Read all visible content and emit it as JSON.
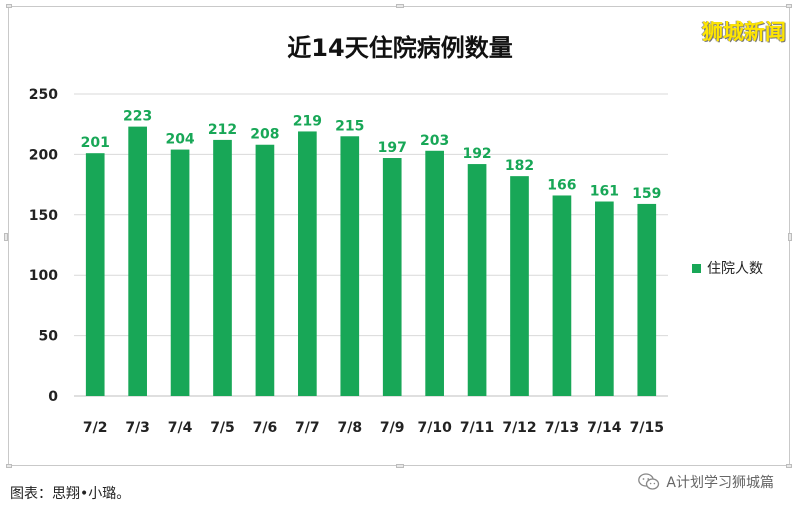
{
  "watermark": "狮城新闻",
  "caption": "图表：思翔•小璐。",
  "account": {
    "icon": "wechat-icon",
    "name": "A计划学习狮城篇"
  },
  "colors": {
    "bar": "#18a757",
    "bar_label": "#18a757",
    "gridline": "#d9d9d9"
  },
  "chart_data": {
    "type": "bar",
    "title": "近14天住院病例数量",
    "xlabel": "",
    "ylabel": "",
    "ylim": [
      0,
      250
    ],
    "yticks": [
      0,
      50,
      100,
      150,
      200,
      250
    ],
    "grid": true,
    "legend_position": "right",
    "categories": [
      "7/2",
      "7/3",
      "7/4",
      "7/5",
      "7/6",
      "7/7",
      "7/8",
      "7/9",
      "7/10",
      "7/11",
      "7/12",
      "7/13",
      "7/14",
      "7/15"
    ],
    "series": [
      {
        "name": "住院人数",
        "values": [
          201,
          223,
          204,
          212,
          208,
          219,
          215,
          197,
          203,
          192,
          182,
          166,
          161,
          159
        ]
      }
    ]
  }
}
